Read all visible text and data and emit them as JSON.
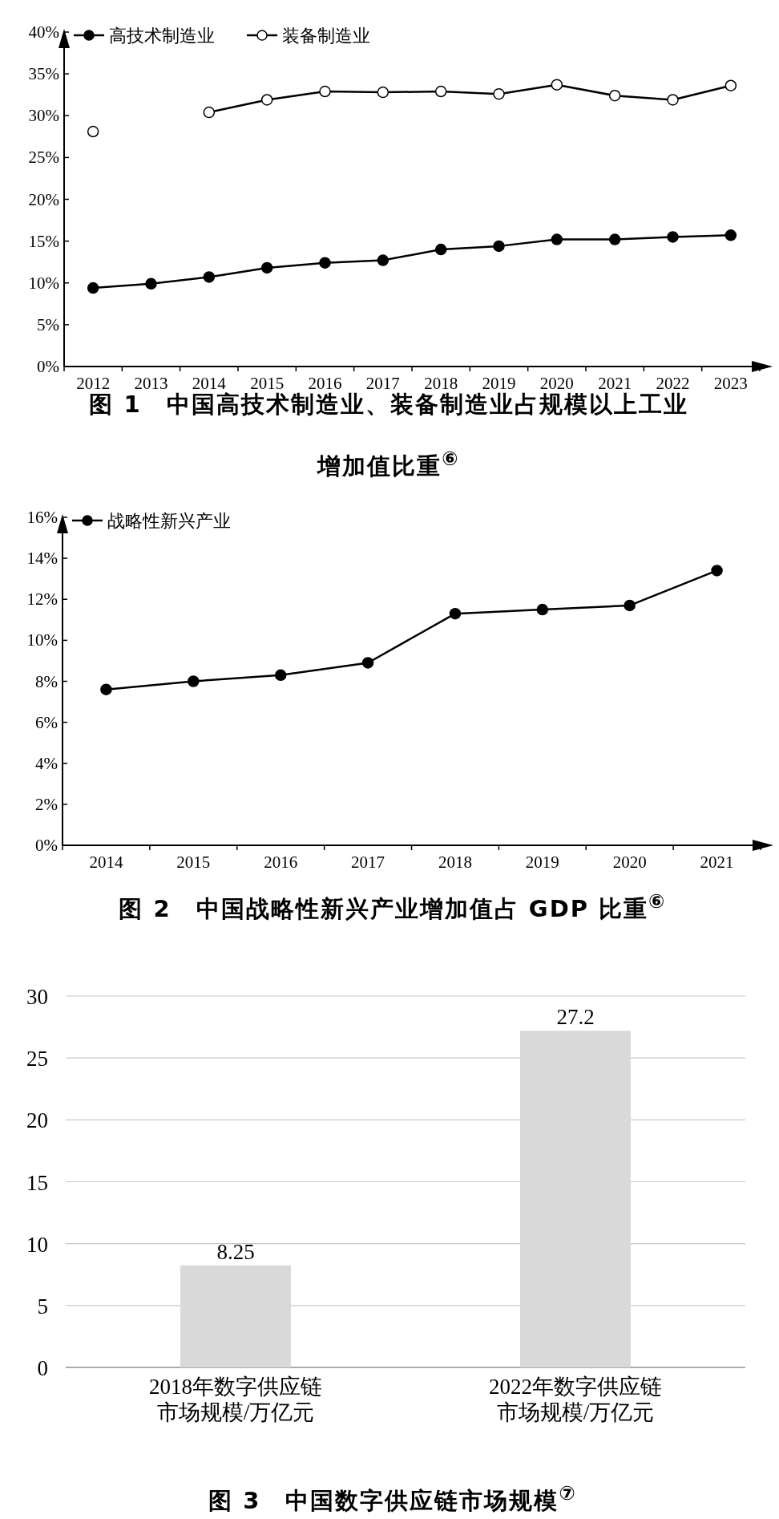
{
  "chart_data": [
    {
      "type": "line",
      "title": "图 1　中国高技术制造业、装备制造业占规模以上工业增加值比重$^{⑥}$",
      "categories": [
        "2012",
        "2013",
        "2014",
        "2015",
        "2016",
        "2017",
        "2018",
        "2019",
        "2020",
        "2021",
        "2022",
        "2023"
      ],
      "series": [
        {
          "name": "高技术制造业",
          "color": "#000000",
          "values": [
            9.4,
            9.9,
            10.7,
            11.8,
            12.4,
            12.7,
            14.0,
            14.4,
            15.2,
            15.2,
            15.5,
            15.7
          ]
        },
        {
          "name": "装备制造业",
          "color": "#000000",
          "colors": [
            "#ffffff",
            "#ffffff",
            "#ffffff",
            "#ffffff",
            "#ffffff",
            "#ffffff",
            "#ffffff",
            "#ffffff",
            "#ffffff",
            "#ffffff",
            "#ffffff",
            "#ffffff"
          ],
          "values": [
            28.1,
            null,
            30.4,
            31.9,
            32.9,
            32.8,
            32.9,
            32.6,
            33.7,
            32.4,
            31.9,
            33.6
          ]
        }
      ],
      "ylim": [
        0,
        40
      ],
      "yticks": [
        {
          "value": 0,
          "label": "0%"
        },
        {
          "value": 5,
          "label": "5%"
        },
        {
          "value": 10,
          "label": "10%"
        },
        {
          "value": 15,
          "label": "15%"
        },
        {
          "value": 20,
          "label": "20%"
        },
        {
          "value": 25,
          "label": "25%"
        },
        {
          "value": 30,
          "label": "30%"
        },
        {
          "value": 35,
          "label": "35%"
        },
        {
          "value": 40,
          "label": "40%"
        }
      ],
      "grid": false,
      "legend": "top left",
      "marker": "circle",
      "line_style": "solid"
    },
    {
      "type": "line",
      "title": "图 2　中国战略性新兴产业增加值占 GDP 比重$^{⑥}$",
      "categories": [
        "2014",
        "2015",
        "2016",
        "2017",
        "2018",
        "2019",
        "2020",
        "2021"
      ],
      "series": [
        {
          "name": "战略性新兴产业",
          "color": "#000000",
          "values": [
            7.6,
            8.0,
            8.3,
            8.9,
            11.3,
            11.5,
            11.7,
            13.4
          ]
        }
      ],
      "ylim": [
        0,
        16
      ],
      "yticks": [
        {
          "value": 0,
          "label": "0%"
        },
        {
          "value": 2,
          "label": "2%"
        },
        {
          "value": 4,
          "label": "4%"
        },
        {
          "value": 6,
          "label": "6%"
        },
        {
          "value": 8,
          "label": "8%"
        },
        {
          "value": 10,
          "label": "10%"
        },
        {
          "value": 12,
          "label": "12%"
        },
        {
          "value": 14,
          "label": "14%"
        },
        {
          "value": 16,
          "label": "16%"
        }
      ],
      "grid": false,
      "legend": "top left",
      "marker": "circle",
      "line_style": "solid"
    },
    {
      "type": "bar",
      "title": "图 3　中国数字供应链市场规模$^{⑦}$",
      "categories": [
        "2018年数字供应链市场规模/万亿元",
        "2022年数字供应链市场规模/万亿元"
      ],
      "values": [
        8.25,
        27.2
      ],
      "color": "#d9d9d9",
      "ylim": [
        0,
        30
      ],
      "yticks": [
        0,
        5,
        10,
        15,
        20,
        25,
        30
      ],
      "grid": "y",
      "data_labels": true
    }
  ]
}
